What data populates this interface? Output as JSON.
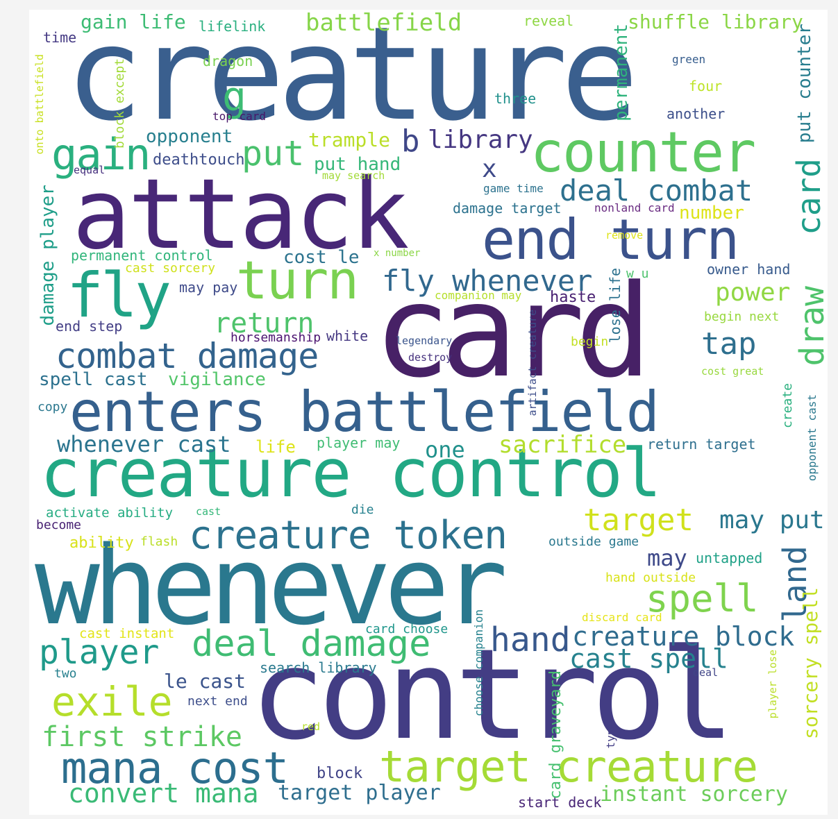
{
  "words": [
    {
      "text": "creature",
      "color": "#3a5f8e"
    },
    {
      "text": "attack",
      "color": "#482777"
    },
    {
      "text": "card",
      "color": "#472166"
    },
    {
      "text": "whenever",
      "color": "#2a788e"
    },
    {
      "text": "control",
      "color": "#433d84"
    },
    {
      "text": "creature control",
      "color": "#22a884"
    },
    {
      "text": "enters battlefield",
      "color": "#35608d"
    },
    {
      "text": "counter",
      "color": "#5ec962"
    },
    {
      "text": "end turn",
      "color": "#3b528b"
    },
    {
      "text": "turn",
      "color": "#7ad151"
    },
    {
      "text": "fly",
      "color": "#20a386"
    },
    {
      "text": "target creature",
      "color": "#a5db36"
    },
    {
      "text": "creature token",
      "color": "#2c728e"
    },
    {
      "text": "mana cost",
      "color": "#2c6e8e"
    },
    {
      "text": "deal damage",
      "color": "#3fbc73"
    },
    {
      "text": "player",
      "color": "#1f9a8a"
    },
    {
      "text": "spell",
      "color": "#7fd34e"
    },
    {
      "text": "exile",
      "color": "#b5de2b"
    },
    {
      "text": "combat damage",
      "color": "#33638d"
    },
    {
      "text": "fly whenever",
      "color": "#31688e"
    },
    {
      "text": "deal combat",
      "color": "#2d708e"
    },
    {
      "text": "battlefield",
      "color": "#86d549"
    },
    {
      "text": "shuffle library",
      "color": "#8bd646"
    },
    {
      "text": "gain life",
      "color": "#3dbc74"
    },
    {
      "text": "library",
      "color": "#453781"
    },
    {
      "text": "put",
      "color": "#4ac16d"
    },
    {
      "text": "gain",
      "color": "#2ab07f"
    },
    {
      "text": "first strike",
      "color": "#5cc863"
    },
    {
      "text": "convert mana",
      "color": "#3aba76"
    },
    {
      "text": "target player",
      "color": "#2e6e8e"
    },
    {
      "text": "instant sorcery",
      "color": "#6ccd5a"
    },
    {
      "text": "hand",
      "color": "#38588c"
    },
    {
      "text": "creature block",
      "color": "#2f6c8e"
    },
    {
      "text": "cast spell",
      "color": "#26828e"
    },
    {
      "text": "target",
      "color": "#d0e11c"
    },
    {
      "text": "may put",
      "color": "#2a778e"
    },
    {
      "text": "return",
      "color": "#4ec36b"
    },
    {
      "text": "tap",
      "color": "#2e6f8e"
    },
    {
      "text": "sacrifice",
      "color": "#b2dd2d"
    },
    {
      "text": "whenever cast",
      "color": "#2b748e"
    },
    {
      "text": "spell cast",
      "color": "#2c718e"
    },
    {
      "text": "vigilance",
      "color": "#52c569"
    },
    {
      "text": "power",
      "color": "#90d743"
    },
    {
      "text": "cost le",
      "color": "#2c738e"
    },
    {
      "text": "one",
      "color": "#21918c"
    },
    {
      "text": "x",
      "color": "#3e4989"
    },
    {
      "text": "b",
      "color": "#3f4788"
    },
    {
      "text": "g",
      "color": "#3dbc74"
    },
    {
      "text": "opponent",
      "color": "#277f8e"
    },
    {
      "text": "trample",
      "color": "#bade28"
    },
    {
      "text": "put hand",
      "color": "#35b779"
    },
    {
      "text": "deathtouch",
      "color": "#3d4d8a"
    },
    {
      "text": "number",
      "color": "#dde318"
    },
    {
      "text": "damage target",
      "color": "#2c728e"
    },
    {
      "text": "game time",
      "color": "#2c728e"
    },
    {
      "text": "nonland card",
      "color": "#6a2c82"
    },
    {
      "text": "permanent control",
      "color": "#31b57b"
    },
    {
      "text": "cast sorcery",
      "color": "#cfe11c"
    },
    {
      "text": "may pay",
      "color": "#3e4a89"
    },
    {
      "text": "end step",
      "color": "#433e85"
    },
    {
      "text": "horsemanship",
      "color": "#4b1370"
    },
    {
      "text": "white",
      "color": "#453882"
    },
    {
      "text": "haste",
      "color": "#482071"
    },
    {
      "text": "companion may",
      "color": "#b5de2b"
    },
    {
      "text": "legendary",
      "color": "#3a548c"
    },
    {
      "text": "destroy",
      "color": "#46327e"
    },
    {
      "text": "begin",
      "color": "#c2df23"
    },
    {
      "text": "begin next",
      "color": "#98d83e"
    },
    {
      "text": "owner hand",
      "color": "#375a8c"
    },
    {
      "text": "w u",
      "color": "#4cc26c"
    },
    {
      "text": "remove",
      "color": "#dde318"
    },
    {
      "text": "x number",
      "color": "#8bd646"
    },
    {
      "text": "cost great",
      "color": "#98d83e"
    },
    {
      "text": "copy",
      "color": "#2a778e"
    },
    {
      "text": "life",
      "color": "#dde318"
    },
    {
      "text": "player may",
      "color": "#3fbc73"
    },
    {
      "text": "return target",
      "color": "#2e6f8e"
    },
    {
      "text": "activate ability",
      "color": "#25ac82"
    },
    {
      "text": "cast",
      "color": "#35b779"
    },
    {
      "text": "die",
      "color": "#26818e"
    },
    {
      "text": "become",
      "color": "#482173"
    },
    {
      "text": "ability",
      "color": "#d8e219"
    },
    {
      "text": "flash",
      "color": "#bade28"
    },
    {
      "text": "outside game",
      "color": "#2a788e"
    },
    {
      "text": "may",
      "color": "#3e4989"
    },
    {
      "text": "untapped",
      "color": "#1fa187"
    },
    {
      "text": "hand outside",
      "color": "#d8e219"
    },
    {
      "text": "discard card",
      "color": "#e5e419"
    },
    {
      "text": "cast instant",
      "color": "#e2e418"
    },
    {
      "text": "card choose",
      "color": "#1f968b"
    },
    {
      "text": "two",
      "color": "#27808e"
    },
    {
      "text": "search library",
      "color": "#29798e"
    },
    {
      "text": "le cast",
      "color": "#3a538b"
    },
    {
      "text": "next end",
      "color": "#3d4e8a"
    },
    {
      "text": "red",
      "color": "#b5de2b"
    },
    {
      "text": "block",
      "color": "#404387"
    },
    {
      "text": "start deck",
      "color": "#482576"
    },
    {
      "text": "deal",
      "color": "#404587"
    },
    {
      "text": "time",
      "color": "#443983"
    },
    {
      "text": "lifelink",
      "color": "#29af7f"
    },
    {
      "text": "reveal",
      "color": "#8fd744"
    },
    {
      "text": "dragon",
      "color": "#7ad151"
    },
    {
      "text": "green",
      "color": "#365d8d"
    },
    {
      "text": "four",
      "color": "#bde327"
    },
    {
      "text": "three",
      "color": "#21918c"
    },
    {
      "text": "another",
      "color": "#3c4f8a"
    },
    {
      "text": "top card",
      "color": "#481769"
    },
    {
      "text": "equal",
      "color": "#a2da37"
    },
    {
      "text": "may search",
      "color": "#46307e"
    },
    {
      "text": "block except",
      "color": "#a2da37"
    },
    {
      "text": "onto battlefield",
      "color": "#c8e020"
    },
    {
      "text": "damage player",
      "color": "#1f9e89"
    },
    {
      "text": "permanent",
      "color": "#2eb37c"
    },
    {
      "text": "put counter",
      "color": "#287d8e"
    },
    {
      "text": "draw",
      "color": "#4ec36b"
    },
    {
      "text": "card",
      "color": "#1f9e89"
    },
    {
      "text": "land",
      "color": "#31688e"
    },
    {
      "text": "sorcery spell",
      "color": "#c2df23"
    },
    {
      "text": "lose life",
      "color": "#2c718e"
    },
    {
      "text": "artifact creature",
      "color": "#3d4e8a"
    },
    {
      "text": "create",
      "color": "#2ab07f"
    },
    {
      "text": "opponent cast",
      "color": "#2a788e"
    },
    {
      "text": "choose companion",
      "color": "#26828e"
    },
    {
      "text": "card graveyard",
      "color": "#46c06f"
    },
    {
      "text": "type",
      "color": "#433e85"
    },
    {
      "text": "player lose",
      "color": "#bade28"
    }
  ]
}
